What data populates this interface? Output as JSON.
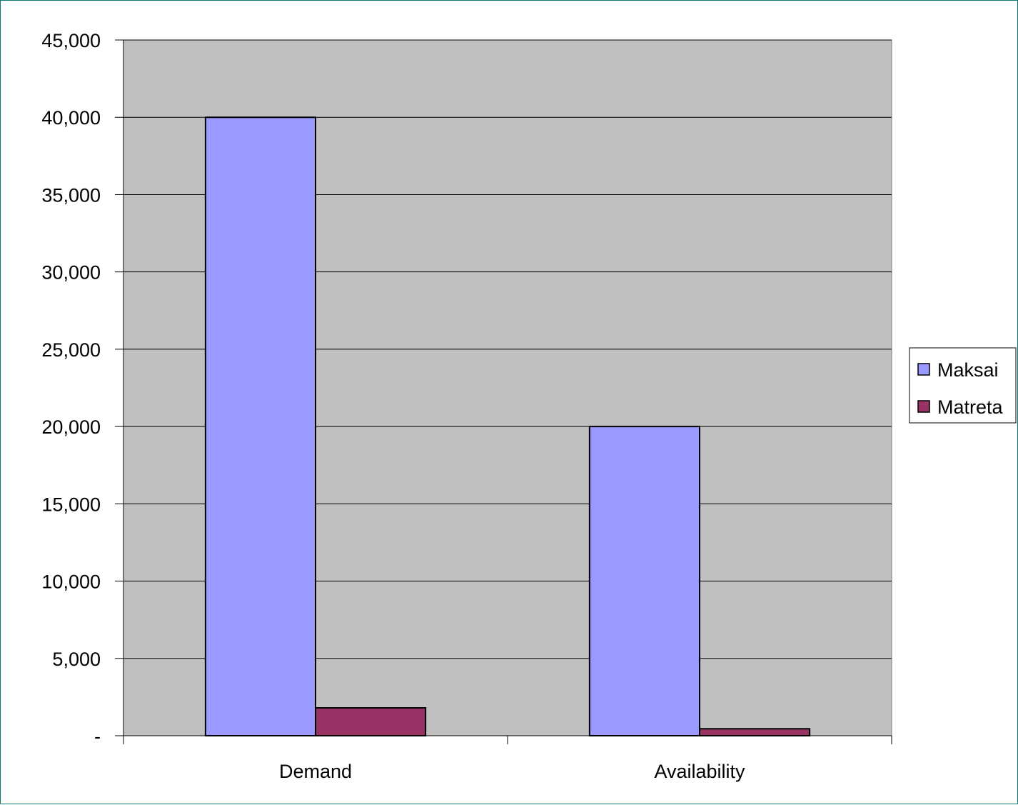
{
  "chart_data": {
    "type": "bar",
    "categories": [
      "Demand",
      "Availability"
    ],
    "series": [
      {
        "name": "Maksai",
        "values": [
          40000,
          20000
        ],
        "color": "#9999ff"
      },
      {
        "name": "Matreta",
        "values": [
          1800,
          450
        ],
        "color": "#993366"
      }
    ],
    "ylim": [
      0,
      45000
    ],
    "yticks": [
      0,
      5000,
      10000,
      15000,
      20000,
      25000,
      30000,
      35000,
      40000,
      45000
    ],
    "ytick_labels": [
      "-",
      "5,000",
      "10,000",
      "15,000",
      "20,000",
      "25,000",
      "30,000",
      "35,000",
      "40,000",
      "45,000"
    ],
    "grid": true,
    "legend_position": "right",
    "plot_background": "#c0c0c0",
    "border_color": "#0b7a7a"
  }
}
